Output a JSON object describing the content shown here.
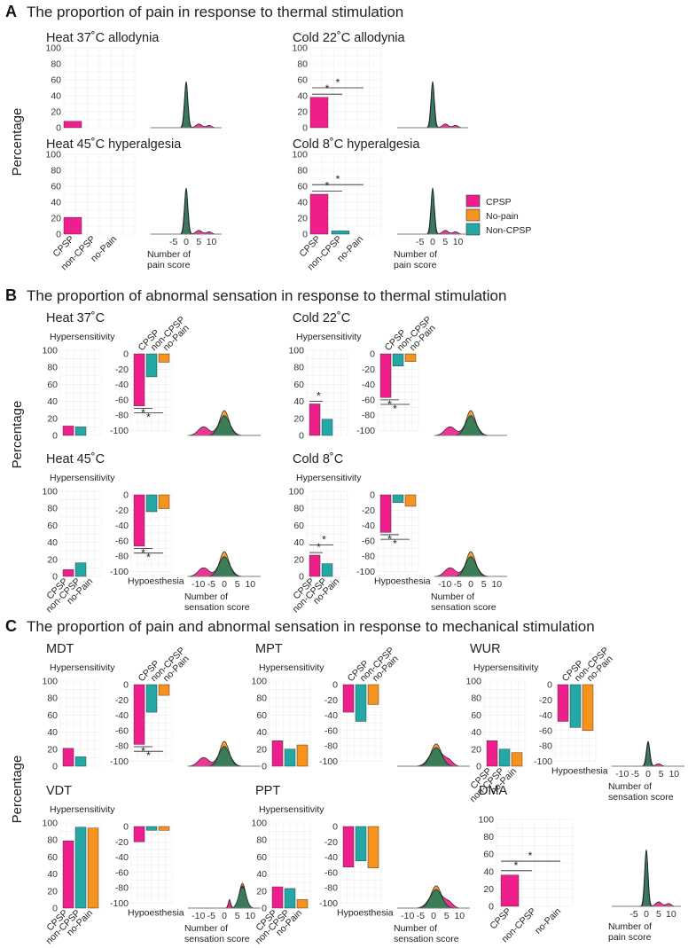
{
  "colors": {
    "CPSP": "#ee1f8c",
    "No-pain": "#f6921e",
    "Non-CPSP": "#23a8a6",
    "overlap": "#2e7d5b"
  },
  "sections": {
    "A": {
      "letter": "A",
      "title": "The proportion of pain in response to thermal stimulation"
    },
    "B": {
      "letter": "B",
      "title": "The proportion of abnormal sensation in response to thermal stimulation"
    },
    "C": {
      "letter": "C",
      "title": "The proportion of pain and abnormal sensation in response to mechanical stimulation"
    }
  },
  "y_label": "Percentage",
  "legend": [
    {
      "name": "CPSP",
      "color": "#ee1f8c"
    },
    {
      "name": "No-pain",
      "color": "#f6921e"
    },
    {
      "name": "Non-CPSP",
      "color": "#23a8a6"
    }
  ],
  "labels": {
    "hypersensitivity": "Hypersensitivity",
    "hypoesthesia": "Hypoesthesia",
    "pain_axis": [
      "Number of",
      "pain score"
    ],
    "sensation_axis": [
      "Number of",
      "sensation score"
    ],
    "sig": "*"
  },
  "chart_data": [
    {
      "id": "A1",
      "type": "bar",
      "title": "Heat 37˚C allodynia",
      "categories": [
        "CPSP",
        "non-CPSP",
        "no-Pain"
      ],
      "values": [
        8,
        0,
        0
      ],
      "ylim": [
        0,
        100
      ],
      "yticks": [
        0,
        20,
        40,
        60,
        80,
        100
      ],
      "density": "pain",
      "xticks": []
    },
    {
      "id": "A2",
      "type": "bar",
      "title": "Cold 22˚C allodynia",
      "categories": [
        "CPSP",
        "non-CPSP",
        "no-Pain"
      ],
      "values": [
        38,
        0,
        0
      ],
      "ylim": [
        0,
        100
      ],
      "yticks": [
        0,
        20,
        40,
        60,
        80,
        100
      ],
      "significance": [
        "*",
        "*"
      ],
      "density": "pain",
      "xticks": []
    },
    {
      "id": "A3",
      "type": "bar",
      "title": "Heat 45˚C hyperalgesia",
      "categories": [
        "CPSP",
        "non-CPSP",
        "no-Pain"
      ],
      "values": [
        21,
        0,
        0
      ],
      "ylim": [
        0,
        100
      ],
      "yticks": [
        0,
        20,
        40,
        60,
        80,
        100
      ],
      "density": "pain",
      "xticks": [
        "-5",
        "0",
        "5",
        "10"
      ],
      "xlabels": [
        "CPSP",
        "non-CPSP",
        "no-Pain"
      ]
    },
    {
      "id": "A4",
      "type": "bar",
      "title": "Cold 8˚C hyperalgesia",
      "categories": [
        "CPSP",
        "non-CPSP",
        "no-Pain"
      ],
      "values": [
        50,
        4,
        0
      ],
      "ylim": [
        0,
        100
      ],
      "yticks": [
        0,
        20,
        40,
        60,
        80,
        100
      ],
      "significance": [
        "*",
        "*"
      ],
      "density": "pain",
      "xticks": [
        "-5",
        "0",
        "5",
        "10"
      ],
      "xlabels": [
        "CPSP",
        "non-CPSP",
        "no-Pain"
      ]
    },
    {
      "id": "B1",
      "type": "bar",
      "title": "Heat 37˚C",
      "categories": [
        "CPSP",
        "non-CPSP",
        "no-Pain"
      ],
      "hyper": [
        11,
        10,
        0
      ],
      "hypo": [
        -68,
        -30,
        -11
      ],
      "hyper_sig": [],
      "hypo_sig": [
        "*",
        "*"
      ],
      "xticks": []
    },
    {
      "id": "B2",
      "type": "bar",
      "title": "Cold 22˚C",
      "categories": [
        "CPSP",
        "non-CPSP",
        "no-Pain"
      ],
      "hyper": [
        37,
        19,
        0
      ],
      "hypo": [
        -57,
        -16,
        -10
      ],
      "hyper_sig": [
        "*"
      ],
      "hypo_sig": [
        "*",
        "*"
      ],
      "xticks": []
    },
    {
      "id": "B3",
      "type": "bar",
      "title": "Heat 45˚C",
      "categories": [
        "CPSP",
        "non-CPSP",
        "no-Pain"
      ],
      "hyper": [
        8,
        16,
        0
      ],
      "hypo": [
        -67,
        -22,
        -18
      ],
      "hyper_sig": [],
      "hypo_sig": [
        "*",
        "*"
      ],
      "xticks": [
        "-10",
        "-5",
        "0",
        "5",
        "10"
      ],
      "xlabels": [
        "CPSP",
        "non-CPSP",
        "no-Pain"
      ]
    },
    {
      "id": "B4",
      "type": "bar",
      "title": "Cold 8˚C",
      "categories": [
        "CPSP",
        "non-CPSP",
        "no-Pain"
      ],
      "hyper": [
        25,
        15,
        0
      ],
      "hypo": [
        -49,
        -10,
        -15
      ],
      "hyper_sig": [
        "*",
        "*"
      ],
      "hypo_sig": [
        "*",
        "*"
      ],
      "xticks": [
        "-10",
        "-5",
        "0",
        "5",
        "10"
      ],
      "xlabels": [
        "CPSP",
        "non-CPSP",
        "no-Pain"
      ]
    },
    {
      "id": "C1",
      "type": "bar",
      "title": "MDT",
      "categories": [
        "CPSP",
        "non-CPSP",
        "no-Pain"
      ],
      "hyper": [
        21,
        11,
        0
      ],
      "hypo": [
        -78,
        -36,
        -14
      ],
      "hyper_sig": [],
      "hypo_sig": [
        "*",
        "*"
      ],
      "xticks": []
    },
    {
      "id": "C2",
      "type": "bar",
      "title": "MPT",
      "categories": [
        "CPSP",
        "non-CPSP",
        "no-Pain"
      ],
      "hyper": [
        30,
        20,
        25
      ],
      "hypo": [
        -36,
        -48,
        -26
      ],
      "hyper_sig": [],
      "hypo_sig": [],
      "xticks": []
    },
    {
      "id": "C3",
      "type": "bar",
      "title": "WUR",
      "categories": [
        "CPSP",
        "non-CPSP",
        "no-Pain"
      ],
      "hyper": [
        30,
        20,
        16
      ],
      "hypo": [
        -48,
        -56,
        -60
      ],
      "hyper_sig": [],
      "hypo_sig": [],
      "xticks": [
        "-10",
        "-5",
        "0",
        "5",
        "10"
      ],
      "xlabels": [
        "CPSP",
        "non-CPSP",
        "no-Pain"
      ]
    },
    {
      "id": "C4",
      "type": "bar",
      "title": "VDT",
      "categories": [
        "CPSP",
        "non-CPSP",
        "no-Pain"
      ],
      "hyper": [
        79,
        95,
        94
      ],
      "hypo": [
        -20,
        -5,
        -5
      ],
      "hyper_sig": [],
      "hypo_sig": [],
      "xticks": [
        "-10",
        "-5",
        "0",
        "5",
        "10"
      ],
      "xlabels": [
        "CPSP",
        "non-CPSP",
        "no-Pain"
      ]
    },
    {
      "id": "C5",
      "type": "bar",
      "title": "PPT",
      "categories": [
        "CPSP",
        "non-CPSP",
        "no-Pain"
      ],
      "hyper": [
        25,
        23,
        10
      ],
      "hypo": [
        -53,
        -45,
        -54
      ],
      "hyper_sig": [],
      "hypo_sig": [],
      "xticks": [
        "-10",
        "-5",
        "0",
        "5",
        "10"
      ],
      "xlabels": [
        "CPSP",
        "non-CPSP",
        "no-Pain"
      ]
    },
    {
      "id": "C6",
      "type": "bar",
      "title": "DMA",
      "categories": [
        "CPSP",
        "non-CPSP",
        "no-Pain"
      ],
      "values": [
        36,
        0,
        0
      ],
      "ylim": [
        0,
        100
      ],
      "yticks": [
        0,
        20,
        40,
        60,
        80,
        100
      ],
      "significance": [
        "*",
        "*"
      ],
      "density": "pain",
      "xticks": [
        "-5",
        "0",
        "5",
        "10"
      ],
      "xlabels": [
        "CPSP",
        "non-CPSP",
        "no-Pain"
      ]
    }
  ]
}
